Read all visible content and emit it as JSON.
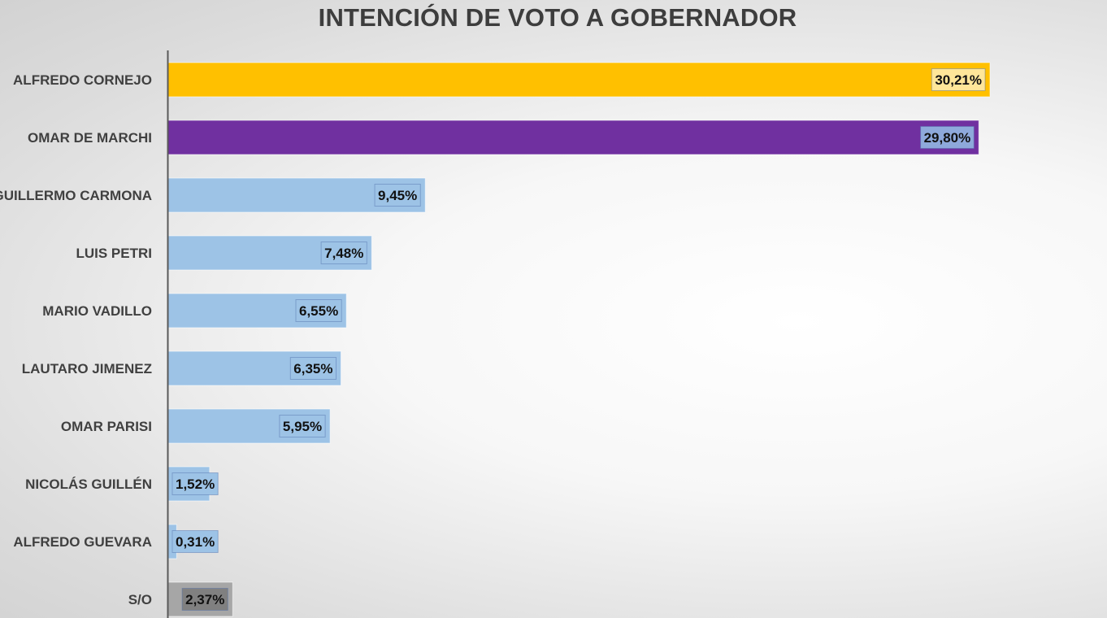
{
  "chart_data": {
    "type": "bar",
    "orientation": "horizontal",
    "title": "INTENCIÓN DE VOTO A GOBERNADOR",
    "categories": [
      "ALFREDO CORNEJO",
      "OMAR DE MARCHI",
      "GUILLERMO CARMONA",
      "LUIS PETRI",
      "MARIO VADILLO",
      "LAUTARO JIMENEZ",
      "OMAR PARISI",
      "NICOLÁS GUILLÉN",
      "ALFREDO GUEVARA",
      "S/O"
    ],
    "values": [
      30.21,
      29.8,
      9.45,
      7.48,
      6.55,
      6.35,
      5.95,
      1.52,
      0.31,
      2.37
    ],
    "value_labels": [
      "30,21%",
      "29,80%",
      "9,45%",
      "7,48%",
      "6,55%",
      "6,35%",
      "5,95%",
      "1,52%",
      "0,31%",
      "2,37%"
    ],
    "unit": "%",
    "bar_colors": [
      "#FFC000",
      "#7030A0",
      "#9DC3E6",
      "#9DC3E6",
      "#9DC3E6",
      "#9DC3E6",
      "#9DC3E6",
      "#9DC3E6",
      "#9DC3E6",
      "#A6A6A6"
    ],
    "label_box_colors": [
      "#FFE699",
      "#8EA9DB",
      "#9DC3E6",
      "#9DC3E6",
      "#9DC3E6",
      "#9DC3E6",
      "#9DC3E6",
      "#9DC3E6",
      "#9DC3E6",
      "#808080"
    ],
    "xlim": [
      0,
      30.21
    ],
    "grid": false,
    "legend": "none"
  }
}
